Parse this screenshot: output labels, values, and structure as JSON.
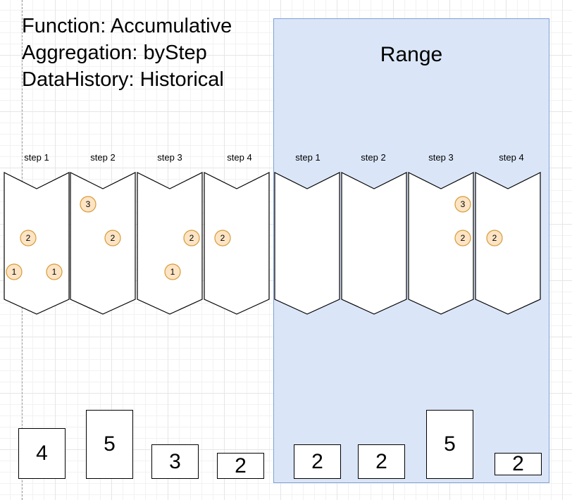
{
  "header": {
    "function_line": "Function: Accumulative",
    "aggregation_line": "Aggregation: byStep",
    "history_line": "DataHistory: Historical"
  },
  "range": {
    "title": "Range"
  },
  "steps": [
    {
      "label": "step 1",
      "markers": [
        {
          "value": "2"
        },
        {
          "value": "1"
        },
        {
          "value": "1"
        }
      ],
      "total": "4"
    },
    {
      "label": "step 2",
      "markers": [
        {
          "value": "3"
        },
        {
          "value": "2"
        }
      ],
      "total": "5"
    },
    {
      "label": "step 3",
      "markers": [
        {
          "value": "2"
        },
        {
          "value": "1"
        }
      ],
      "total": "3"
    },
    {
      "label": "step 4",
      "markers": [
        {
          "value": "2"
        }
      ],
      "total": "2"
    },
    {
      "label": "step 1",
      "markers": [],
      "total": "2"
    },
    {
      "label": "step 2",
      "markers": [],
      "total": "2"
    },
    {
      "label": "step 3",
      "markers": [
        {
          "value": "3"
        },
        {
          "value": "2"
        }
      ],
      "total": "5"
    },
    {
      "label": "step 4",
      "markers": [
        {
          "value": "2"
        }
      ],
      "total": "2"
    }
  ],
  "colors": {
    "range_fill": "#dae6f8",
    "range_border": "#7f9fd6",
    "marker_fill": "#fde4c4",
    "marker_border": "#d79b3a"
  }
}
